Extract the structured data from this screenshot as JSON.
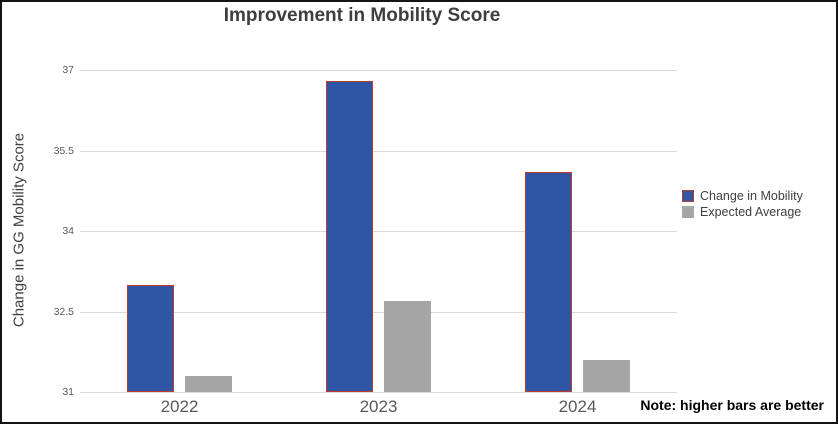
{
  "title": "Improvement in Mobility Score",
  "note": "Note: higher bars are better",
  "colors": {
    "bar_blue": "#2f56a5",
    "bar_blue_border": "#c0392b",
    "bar_gray": "#a6a6a6",
    "gridline": "#d9d9d9",
    "title_text": "#3e3e3e",
    "axis_text": "#595959"
  },
  "chart_data": {
    "type": "bar",
    "title": "Improvement in Mobility Score",
    "xlabel": "",
    "ylabel": "Change in GG Mobility Score",
    "categories": [
      "2022",
      "2023",
      "2024"
    ],
    "series": [
      {
        "name": "Change in Mobility",
        "color": "#2f56a5",
        "border_color": "#c0392b",
        "values": [
          33.0,
          36.8,
          35.1
        ]
      },
      {
        "name": "Expected Average",
        "color": "#a6a6a6",
        "border_color": null,
        "values": [
          31.3,
          32.7,
          31.6
        ]
      }
    ],
    "ylim": [
      31,
      37
    ],
    "yticks": [
      31,
      32.5,
      34,
      35.5,
      37
    ],
    "grid": true,
    "legend_position": "right",
    "annotation": "Note: higher bars are better"
  }
}
